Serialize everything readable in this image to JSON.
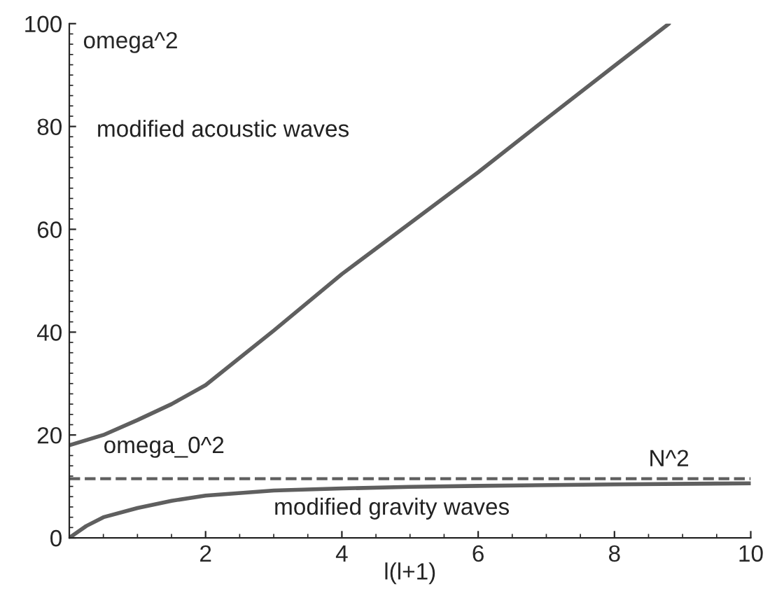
{
  "chart_data": {
    "type": "line",
    "xlabel": "l(l+1)",
    "ylabel": "omega^2",
    "xlim": [
      0,
      10
    ],
    "ylim": [
      0,
      100
    ],
    "xticks": [
      2,
      4,
      6,
      8,
      10
    ],
    "yticks": [
      0,
      20,
      40,
      60,
      80,
      100
    ],
    "series": [
      {
        "color": "#5f5f5f",
        "x": [
          0,
          0.5,
          1,
          1.5,
          2,
          3,
          4,
          5,
          6,
          7,
          8,
          8.8
        ],
        "values": [
          18,
          20,
          22.9,
          26,
          29.7,
          40.3,
          51.3,
          61.2,
          71.1,
          81.5,
          91.8,
          100
        ]
      },
      {
        "color": "#5f5f5f",
        "x": [
          0,
          0.25,
          0.5,
          1,
          1.5,
          2,
          3,
          4,
          5,
          6,
          8,
          10
        ],
        "values": [
          0,
          2.3,
          4,
          5.8,
          7.2,
          8.2,
          9.2,
          9.6,
          9.9,
          10.1,
          10.4,
          10.6
        ]
      }
    ],
    "ref_lines": [
      {
        "axis": "y",
        "value": 11.5,
        "label": "N^2",
        "color": "#5f5f5f",
        "line_style": "dashed"
      }
    ],
    "annotations": [
      "modified acoustic waves",
      "omega_0^2",
      "modified gravity waves"
    ],
    "grid": false,
    "marker": "none",
    "line_style": "solid"
  }
}
